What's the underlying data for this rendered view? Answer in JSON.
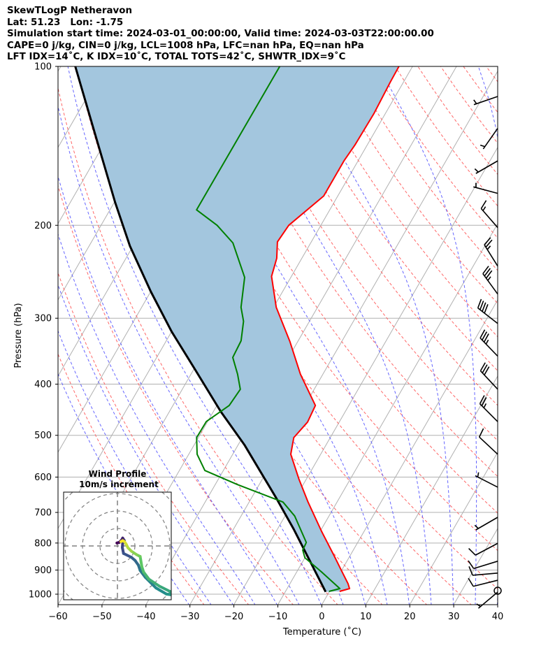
{
  "header": {
    "line1": "SkewTLogP Netheravon",
    "line2": "Lat: 51.23   Lon: -1.75",
    "line3": "Simulation start time: 2024-03-01_00:00:00, Valid time: 2024-03-03T22:00:00.00",
    "line4": "CAPE=0 j/kg, CIN=0 j/kg, LCL=1008 hPa, LFC=nan hPa, EQ=nan hPa",
    "line5": "LFT IDX=14˚C, K IDX=10˚C, TOTAL TOTS=42˚C, SHWTR_IDX=9˚C"
  },
  "chart_data": {
    "type": "line",
    "subtype": "skew-t log-p",
    "xlabel": "Temperature (˚C)",
    "ylabel": "Pressure (hPa)",
    "xlim": [
      -60,
      40
    ],
    "ylim": [
      1046,
      100
    ],
    "xticks": [
      "−60",
      "−50",
      "−40",
      "−30",
      "−20",
      "−10",
      "0",
      "10",
      "20",
      "30",
      "40"
    ],
    "xtick_values": [
      -60,
      -50,
      -40,
      -30,
      -20,
      -10,
      0,
      10,
      20,
      30,
      40
    ],
    "yticks": [
      "100",
      "200",
      "300",
      "400",
      "500",
      "600",
      "700",
      "800",
      "900",
      "1000"
    ],
    "ytick_values": [
      100,
      200,
      300,
      400,
      500,
      600,
      700,
      800,
      900,
      1000
    ],
    "grid": true,
    "colors": {
      "temperature": "#ff0000",
      "dewpoint": "#008000",
      "parcel": "#000000",
      "shade": "#a3c6de",
      "isotherm": "#b0b0b0",
      "dry_adiabat": "#ff6666",
      "moist_adiabat": "#6666ff"
    },
    "series": [
      {
        "name": "Temperature",
        "pressure": [
          988,
          976,
          955,
          899,
          846,
          760,
          669,
          605,
          543,
          505,
          472,
          439,
          383,
          332,
          286,
          250,
          231,
          215,
          200,
          176,
          163,
          151,
          141,
          123,
          107,
          100
        ],
        "temperature": [
          2.3,
          4.2,
          3.2,
          -0.2,
          -3.6,
          -9.7,
          -16.6,
          -21.7,
          -26.8,
          -28.3,
          -27.2,
          -27.6,
          -35.1,
          -41.8,
          -49.4,
          -54.5,
          -55.7,
          -57.7,
          -57.3,
          -53.2,
          -53.2,
          -53.2,
          -52.8,
          -52.6,
          -53.0,
          -53.1
        ]
      },
      {
        "name": "Dewpoint",
        "pressure": [
          988,
          976,
          907,
          853,
          825,
          798,
          711,
          669,
          620,
          583,
          543,
          505,
          471,
          439,
          409,
          383,
          356,
          331,
          304,
          286,
          251,
          216,
          200,
          187,
          100
        ],
        "temperature": [
          -0.1,
          2.0,
          -4.4,
          -10.0,
          -11.5,
          -11.7,
          -17.8,
          -22.3,
          -34.9,
          -44.2,
          -48.1,
          -50.4,
          -50.3,
          -47.2,
          -46.8,
          -49.4,
          -52.7,
          -53.0,
          -55.0,
          -57.4,
          -60.5,
          -67.7,
          -73.6,
          -80.3,
          -80.2
        ]
      },
      {
        "name": "Parcel",
        "pressure": [
          990,
          753,
          657,
          521,
          451,
          377,
          318,
          267,
          219,
          181,
          135,
          100
        ],
        "temperature": [
          -0.8,
          -16.3,
          -24.4,
          -38.6,
          -48.3,
          -59.4,
          -70.0,
          -80.0,
          -90.7,
          -99.8,
          -113.1,
          -126.7
        ]
      }
    ],
    "wind_barbs": [
      {
        "pressure": 114,
        "direction": 251,
        "speed": 5
      },
      {
        "pressure": 131,
        "direction": 215,
        "speed": 5
      },
      {
        "pressure": 151,
        "direction": 240,
        "speed": 5
      },
      {
        "pressure": 174,
        "direction": 285,
        "speed": 5
      },
      {
        "pressure": 202,
        "direction": 319,
        "speed": 15
      },
      {
        "pressure": 239,
        "direction": 328,
        "speed": 25
      },
      {
        "pressure": 270,
        "direction": 324,
        "speed": 35
      },
      {
        "pressure": 307,
        "direction": 308,
        "speed": 40
      },
      {
        "pressure": 354,
        "direction": 316,
        "speed": 35
      },
      {
        "pressure": 409,
        "direction": 317,
        "speed": 30
      },
      {
        "pressure": 471,
        "direction": 315,
        "speed": 25
      },
      {
        "pressure": 543,
        "direction": 313,
        "speed": 10
      },
      {
        "pressure": 627,
        "direction": 297,
        "speed": 5
      },
      {
        "pressure": 715,
        "direction": 240,
        "speed": 5
      },
      {
        "pressure": 801,
        "direction": 242,
        "speed": 10
      },
      {
        "pressure": 866,
        "direction": 253,
        "speed": 10
      },
      {
        "pressure": 912,
        "direction": 265,
        "speed": 10
      },
      {
        "pressure": 941,
        "direction": 256,
        "speed": 10
      },
      {
        "pressure": 985,
        "direction": 0,
        "speed": 0
      },
      {
        "pressure": 991,
        "direction": 230,
        "speed": 5
      }
    ],
    "hodograph": {
      "title": "Wind Profile",
      "subtitle": "10m/s increment",
      "ring_increment_ms": 10,
      "u": [
        -0.3,
        1.0,
        2.5,
        3.0,
        4.0,
        3.0,
        2.8,
        3.5,
        8.0,
        10.1,
        12.0,
        13.0,
        16.0,
        22.0,
        28.0,
        31.0,
        30.0,
        24.0,
        18.0,
        15.0,
        14.0,
        13.0,
        11.0,
        8.0,
        6.0,
        5.0,
        4.0,
        3.0,
        2.0
      ],
      "v": [
        1.7,
        2.0,
        3.5,
        4.5,
        3.0,
        1.5,
        -0.9,
        -4.3,
        -6.5,
        -8.3,
        -11.0,
        -14.0,
        -18.0,
        -24.0,
        -27.5,
        -28.0,
        -26.0,
        -23.0,
        -19.0,
        -15.0,
        -12.0,
        -6.0,
        -5.0,
        -3.0,
        -1.0,
        1.0,
        2.5,
        3.0,
        2.5
      ]
    }
  }
}
